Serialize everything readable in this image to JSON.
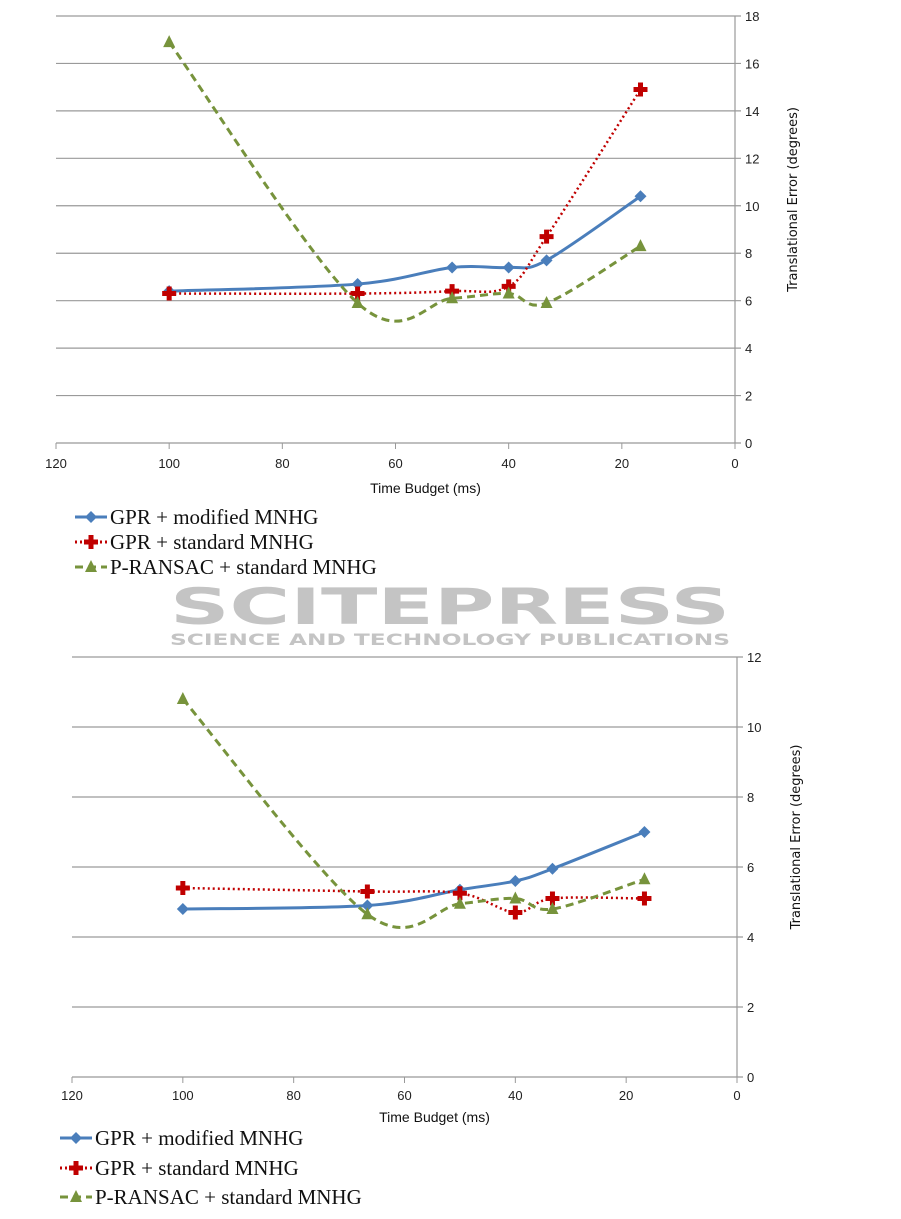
{
  "watermark": {
    "logo": "SCITEPRESS",
    "tagline": "SCIENCE AND TECHNOLOGY PUBLICATIONS"
  },
  "colors": {
    "gpr_modified": "#4a7ebb",
    "gpr_standard": "#c00000",
    "pransac": "#77933c",
    "grid": "#9a9a9a"
  },
  "chart_data": [
    {
      "type": "line",
      "title": "",
      "xlabel": "Time Budget (ms)",
      "ylabel": "Translational Error (degrees)",
      "xlim": [
        120,
        0
      ],
      "ylim": [
        0,
        18
      ],
      "xticks": [
        "120",
        "100",
        "80",
        "60",
        "40",
        "20",
        "0"
      ],
      "yticks": [
        "0",
        "2",
        "4",
        "6",
        "8",
        "10",
        "12",
        "14",
        "16",
        "18"
      ],
      "grid": true,
      "legend": "bottom-left",
      "x": [
        100,
        66.7,
        50,
        40,
        33.3,
        16.7
      ],
      "series": [
        {
          "name": "GPR + modified MNHG",
          "values": [
            6.4,
            6.7,
            7.4,
            7.4,
            7.7,
            10.4
          ],
          "marker": "diamond",
          "dash": "solid"
        },
        {
          "name": "GPR + standard MNHG",
          "values": [
            6.3,
            6.3,
            6.4,
            6.6,
            8.7,
            14.9
          ],
          "marker": "cross",
          "dash": "dotted"
        },
        {
          "name": "P-RANSAC + standard MNHG",
          "values": [
            16.9,
            5.9,
            6.1,
            6.3,
            5.9,
            8.3
          ],
          "marker": "triangle",
          "dash": "dashed"
        }
      ]
    },
    {
      "type": "line",
      "title": "",
      "xlabel": "Time Budget (ms)",
      "ylabel": "Translational Error (degrees)",
      "xlim": [
        120,
        0
      ],
      "ylim": [
        0,
        12
      ],
      "xticks": [
        "120",
        "100",
        "80",
        "60",
        "40",
        "20",
        "0"
      ],
      "yticks": [
        "0",
        "2",
        "4",
        "6",
        "8",
        "10",
        "12"
      ],
      "grid": true,
      "legend": "bottom-left",
      "x": [
        100,
        66.7,
        50,
        40,
        33.3,
        16.7
      ],
      "series": [
        {
          "name": "GPR + modified MNHG",
          "values": [
            4.8,
            4.9,
            5.35,
            5.6,
            5.95,
            7.0
          ],
          "marker": "diamond",
          "dash": "solid"
        },
        {
          "name": "GPR + standard MNHG",
          "values": [
            5.4,
            5.3,
            5.25,
            4.7,
            5.1,
            5.1
          ],
          "marker": "cross",
          "dash": "dotted"
        },
        {
          "name": "P-RANSAC + standard MNHG",
          "values": [
            10.8,
            4.65,
            4.95,
            5.1,
            4.8,
            5.65
          ],
          "marker": "triangle",
          "dash": "dashed"
        }
      ]
    }
  ]
}
